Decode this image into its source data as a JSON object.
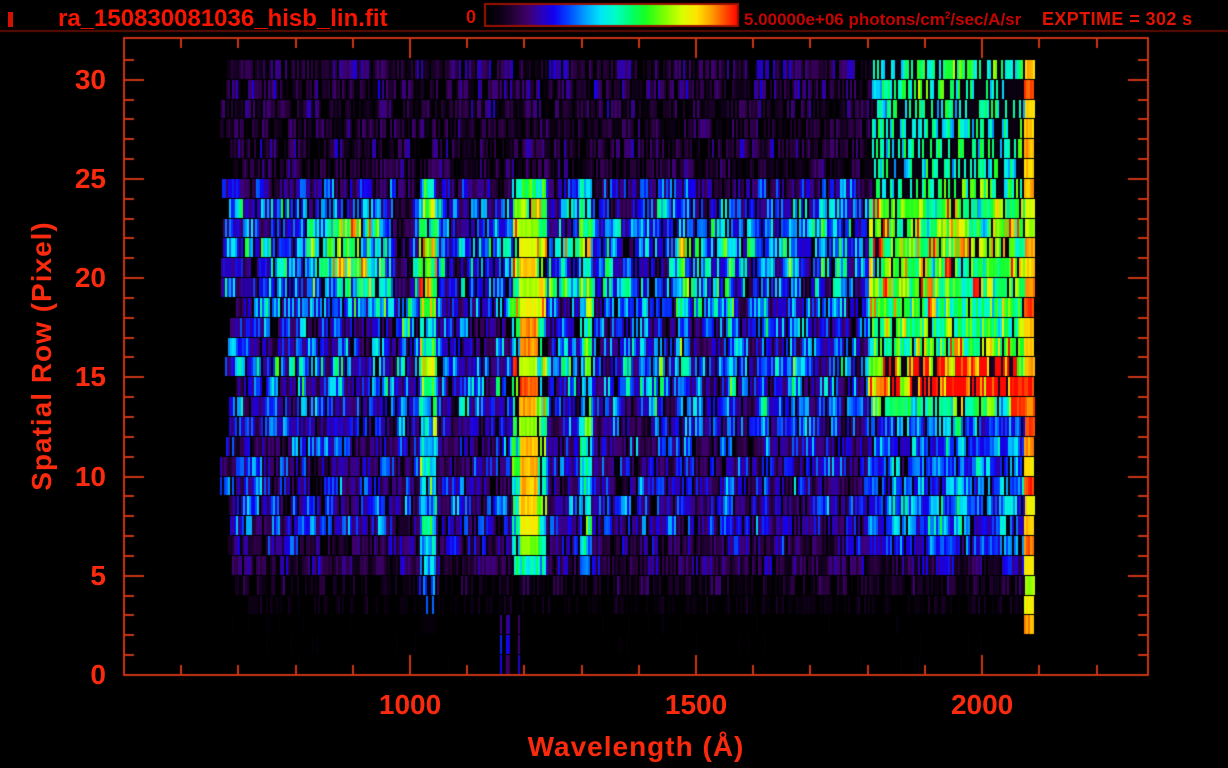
{
  "header": {
    "filename": "ra_150830081036_hisb_lin.fit",
    "exptime_label": "EXPTIME = 302 s",
    "colorbar": {
      "min_label": "0",
      "max_value": "5.00000e+06",
      "unit_prefix": " photons/cm",
      "unit_sup": "2",
      "unit_suffix": "/sec/A/sr"
    }
  },
  "colors": {
    "background": "#000000",
    "title_red": "#f81400",
    "axis_line": "#ca3415",
    "tick_label": "#fa2a0e",
    "colorbar_label": "#c50300",
    "exptime_label": "#e11303",
    "header_divider": "#5c0c02",
    "colorbar_border": "#9b1000"
  },
  "chart_data": {
    "type": "heatmap",
    "title": "ra_150830081036_hisb_lin.fit",
    "xlabel": "Wavelength (Å)",
    "ylabel": "Spatial Row (Pixel)",
    "xlim": [
      500,
      2290
    ],
    "ylim": [
      0,
      32.1
    ],
    "x_major_ticks": [
      1000,
      1500,
      2000
    ],
    "x_minor_tick_step": 100,
    "y_major_ticks": [
      0,
      5,
      10,
      15,
      20,
      25,
      30
    ],
    "y_minor_tick_step": 1,
    "grid": false,
    "colorbar": {
      "min": 0,
      "max": 5000000,
      "units": "photons/cm^2/sec/A/sr",
      "exposure_s": 302
    },
    "colormap_stops": [
      [
        0.0,
        "#000000"
      ],
      [
        0.06,
        "#0d0016"
      ],
      [
        0.12,
        "#2b0041"
      ],
      [
        0.17,
        "#3f0070"
      ],
      [
        0.22,
        "#2a00b8"
      ],
      [
        0.27,
        "#1300f2"
      ],
      [
        0.33,
        "#0048ff"
      ],
      [
        0.4,
        "#00a6ff"
      ],
      [
        0.46,
        "#00e8f8"
      ],
      [
        0.52,
        "#00ffc0"
      ],
      [
        0.58,
        "#00ff6a"
      ],
      [
        0.64,
        "#1dff1d"
      ],
      [
        0.71,
        "#7dff00"
      ],
      [
        0.78,
        "#d8ff00"
      ],
      [
        0.84,
        "#ffe400"
      ],
      [
        0.9,
        "#ff9c00"
      ],
      [
        0.95,
        "#ff4e00"
      ],
      [
        1.0,
        "#ff0800"
      ]
    ],
    "data_extent": {
      "lambda": [
        668,
        2110
      ],
      "rows": [
        0,
        31
      ]
    },
    "data_start_lambda_range": [
      668,
      698
    ],
    "row_base_intensity": [
      0.012,
      0.015,
      0.02,
      0.05,
      0.09,
      0.14,
      0.17,
      0.22,
      0.24,
      0.22,
      0.23,
      0.22,
      0.24,
      0.26,
      0.3,
      0.32,
      0.27,
      0.26,
      0.3,
      0.34,
      0.33,
      0.35,
      0.33,
      0.3,
      0.21,
      0.1,
      0.12,
      0.1,
      0.11,
      0.13,
      0.14
    ],
    "features": [
      {
        "name": "green-blob-890",
        "type": "gauss",
        "lambda_center": 890,
        "lambda_sigma": 50,
        "rows": [
          19,
          23.6
        ],
        "add": 0.34
      },
      {
        "name": "blob-tail-diagonal",
        "type": "diag",
        "from": [
          905,
          20
        ],
        "to": [
          1020,
          16.5
        ],
        "add": 0.16
      },
      {
        "name": "left-arc-rise",
        "type": "diag",
        "from": [
          755,
          14
        ],
        "to": [
          795,
          19
        ],
        "add": 0.14
      },
      {
        "name": "lyman-beta-1026-column",
        "type": "column",
        "lambda": [
          1015,
          1045
        ],
        "rows": [
          2,
          24.6
        ],
        "add": 0.27
      },
      {
        "name": "lyman-beta-boost-rows19-21",
        "type": "column",
        "lambda": [
          1015,
          1045
        ],
        "rows": [
          18.5,
          21.6
        ],
        "add": 0.14
      },
      {
        "name": "dark-gap-985",
        "type": "column",
        "lambda": [
          972,
          1000
        ],
        "rows": [
          19,
          24
        ],
        "mul": 0.45
      },
      {
        "name": "lyman-alpha-halo",
        "type": "column",
        "lambda": [
          1178,
          1236
        ],
        "rows": [
          4.6,
          24.7
        ],
        "add": 0.34
      },
      {
        "name": "lyman-alpha-1216-core",
        "type": "column",
        "lambda": [
          1190,
          1221
        ],
        "rows": [
          5.9,
          23.2
        ],
        "set": 0.84,
        "row_jitter": 0.13
      },
      {
        "name": "oi-1304-column",
        "type": "column",
        "lambda": [
          1295,
          1315
        ],
        "rows": [
          5,
          24.6
        ],
        "add": 0.26
      },
      {
        "name": "bridge-row21",
        "type": "box",
        "lambda": [
          1221,
          1318
        ],
        "rows": [
          20.9,
          22.2
        ],
        "add": 0.27
      },
      {
        "name": "bridge-row19",
        "type": "box",
        "lambda": [
          1226,
          1322
        ],
        "rows": [
          18.9,
          20.1
        ],
        "add": 0.2
      },
      {
        "name": "stripe-1432",
        "type": "column",
        "lambda": [
          1424,
          1440
        ],
        "rows": [
          13,
          20
        ],
        "add": 0.12
      },
      {
        "name": "ni-1493-stripe",
        "type": "column",
        "lambda": [
          1466,
          1488
        ],
        "rows": [
          13,
          21.6
        ],
        "add": 0.2
      },
      {
        "name": "stripe-1560",
        "type": "column",
        "lambda": [
          1552,
          1566
        ],
        "rows": [
          7,
          23
        ],
        "add": 0.11
      },
      {
        "name": "stripe-1620",
        "type": "column",
        "lambda": [
          1612,
          1626
        ],
        "rows": [
          7,
          23
        ],
        "add": 0.1
      },
      {
        "name": "stripe-1666",
        "type": "column",
        "lambda": [
          1658,
          1674
        ],
        "rows": [
          13,
          22.5
        ],
        "add": 0.12
      },
      {
        "name": "stripe-1745",
        "type": "column",
        "lambda": [
          1737,
          1752
        ],
        "rows": [
          12,
          23
        ],
        "add": 0.1
      },
      {
        "name": "right-green-region",
        "type": "box",
        "lambda": [
          1800,
          2072
        ],
        "rows": [
          13,
          23.6
        ],
        "add": 0.36
      },
      {
        "name": "right-green-upper-speckle",
        "type": "box",
        "lambda": [
          1806,
          2072
        ],
        "rows": [
          23.6,
          30.9
        ],
        "add": 0.42,
        "dropout": 0.25
      },
      {
        "name": "right-green-lower",
        "type": "box",
        "lambda": [
          1800,
          2072
        ],
        "rows": [
          6,
          13
        ],
        "add": 0.13
      },
      {
        "name": "yellow-streak-row15",
        "type": "box",
        "lambda": [
          1788,
          2058
        ],
        "rows": [
          15.05,
          15.95
        ],
        "add": 0.34,
        "ramp": true
      },
      {
        "name": "orange-streak-row14",
        "type": "box",
        "lambda": [
          1797,
          2068
        ],
        "rows": [
          14.05,
          15.0
        ],
        "add": 0.44,
        "ramp": true
      },
      {
        "name": "red-blob-2065",
        "type": "box",
        "lambda": [
          2050,
          2092
        ],
        "rows": [
          12.9,
          15.0
        ],
        "set": 0.96,
        "row_jitter": 0.03
      },
      {
        "name": "red-edge-column-2080",
        "type": "column",
        "lambda": [
          2072,
          2094
        ],
        "rows": [
          1.8,
          30.6
        ],
        "set": 0.86,
        "row_jitter": 0.12
      },
      {
        "name": "edge-sparse-tail",
        "type": "sparse",
        "lambda": [
          2094,
          2140
        ],
        "rows": [
          0,
          30.5
        ],
        "fill": 0.15,
        "value": 0.24
      },
      {
        "name": "low-row-dashes-1170",
        "type": "sparse",
        "lambda": [
          1150,
          1195
        ],
        "rows": [
          0,
          2.9
        ],
        "fill": 0.3,
        "value": 0.26
      }
    ]
  }
}
